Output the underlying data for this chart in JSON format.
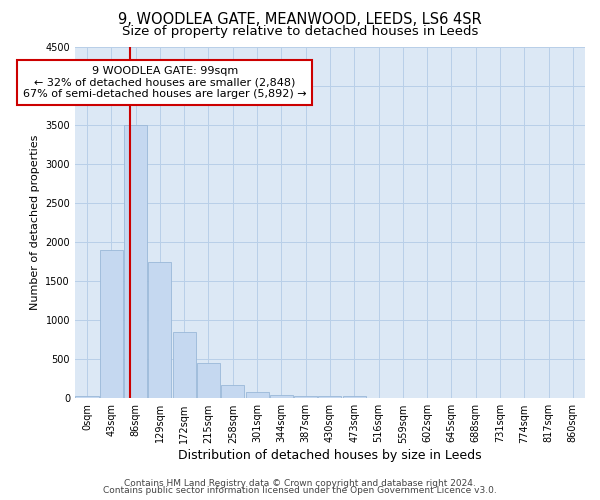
{
  "title": "9, WOODLEA GATE, MEANWOOD, LEEDS, LS6 4SR",
  "subtitle": "Size of property relative to detached houses in Leeds",
  "xlabel": "Distribution of detached houses by size in Leeds",
  "ylabel": "Number of detached properties",
  "categories": [
    "0sqm",
    "43sqm",
    "86sqm",
    "129sqm",
    "172sqm",
    "215sqm",
    "258sqm",
    "301sqm",
    "344sqm",
    "387sqm",
    "430sqm",
    "473sqm",
    "516sqm",
    "559sqm",
    "602sqm",
    "645sqm",
    "688sqm",
    "731sqm",
    "774sqm",
    "817sqm",
    "860sqm"
  ],
  "values": [
    30,
    1900,
    3500,
    1750,
    850,
    450,
    175,
    85,
    45,
    35,
    30,
    30,
    0,
    0,
    0,
    0,
    0,
    0,
    0,
    0,
    0
  ],
  "bar_color": "#c5d8f0",
  "bar_edge_color": "#9ab8d8",
  "vline_color": "#cc0000",
  "vline_x_index": 2,
  "annotation_text_line1": "9 WOODLEA GATE: 99sqm",
  "annotation_text_line2": "← 32% of detached houses are smaller (2,848)",
  "annotation_text_line3": "67% of semi-detached houses are larger (5,892) →",
  "annotation_box_color": "#cc0000",
  "ylim": [
    0,
    4500
  ],
  "yticks": [
    0,
    500,
    1000,
    1500,
    2000,
    2500,
    3000,
    3500,
    4000,
    4500
  ],
  "figure_bg": "#ffffff",
  "plot_bg": "#dce8f5",
  "grid_color": "#b8cfe8",
  "footer_line1": "Contains HM Land Registry data © Crown copyright and database right 2024.",
  "footer_line2": "Contains public sector information licensed under the Open Government Licence v3.0.",
  "title_fontsize": 10.5,
  "subtitle_fontsize": 9.5,
  "xlabel_fontsize": 9,
  "ylabel_fontsize": 8,
  "tick_fontsize": 7,
  "footer_fontsize": 6.5,
  "annotation_fontsize": 8
}
